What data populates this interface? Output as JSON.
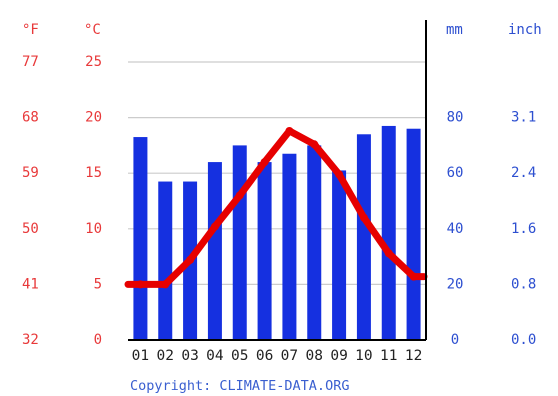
{
  "chart_data": {
    "type": "bar+line",
    "categories": [
      "01",
      "02",
      "03",
      "04",
      "05",
      "06",
      "07",
      "08",
      "09",
      "10",
      "11",
      "12"
    ],
    "precip_mm": [
      73,
      57,
      57,
      64,
      70,
      64,
      67,
      70,
      61,
      74,
      77,
      76
    ],
    "temp_c": [
      5.0,
      5.0,
      7.2,
      10.2,
      13.0,
      16.0,
      18.8,
      17.6,
      14.9,
      11.0,
      7.8,
      5.7
    ],
    "colors": {
      "bars": "#1530e0",
      "line": "#e60000",
      "temp_axis": "#e8393a",
      "precip_axis": "#2d4fd0"
    },
    "axes": {
      "fahrenheit": {
        "label": "°F",
        "ticks": [
          "32",
          "41",
          "50",
          "59",
          "68",
          "77"
        ]
      },
      "celsius": {
        "label": "°C",
        "ticks": [
          "0",
          "5",
          "10",
          "15",
          "20",
          "25"
        ],
        "range": [
          0,
          25
        ]
      },
      "mm": {
        "label": "mm",
        "ticks": [
          "0",
          "20",
          "40",
          "60",
          "80"
        ],
        "range": [
          0,
          100
        ]
      },
      "inch": {
        "label": "inch",
        "ticks": [
          "0.0",
          "0.8",
          "1.6",
          "2.4",
          "3.1"
        ]
      }
    },
    "grid": true,
    "copyright": "Copyright: CLIMATE-DATA.ORG"
  }
}
